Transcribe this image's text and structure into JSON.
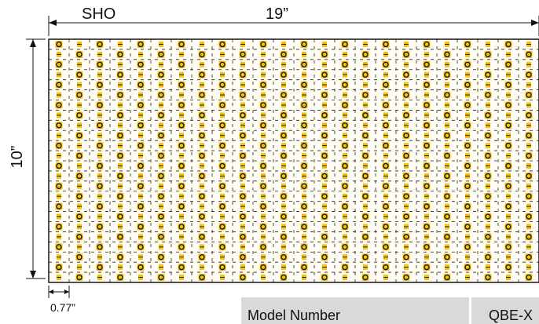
{
  "diagram": {
    "top_label": "SHO",
    "width_label": "19”",
    "height_label": "10”",
    "spacing_label": "0.77”",
    "grid": {
      "columns": 24,
      "rows": 24
    },
    "colors": {
      "led_yellow": "#f4c311",
      "led_dark": "#1a1a1a",
      "trace_dark": "#222222",
      "board_edge": "#111111"
    }
  },
  "spec_table": {
    "header_label": "Model Number",
    "header_value": "QBE-X"
  }
}
